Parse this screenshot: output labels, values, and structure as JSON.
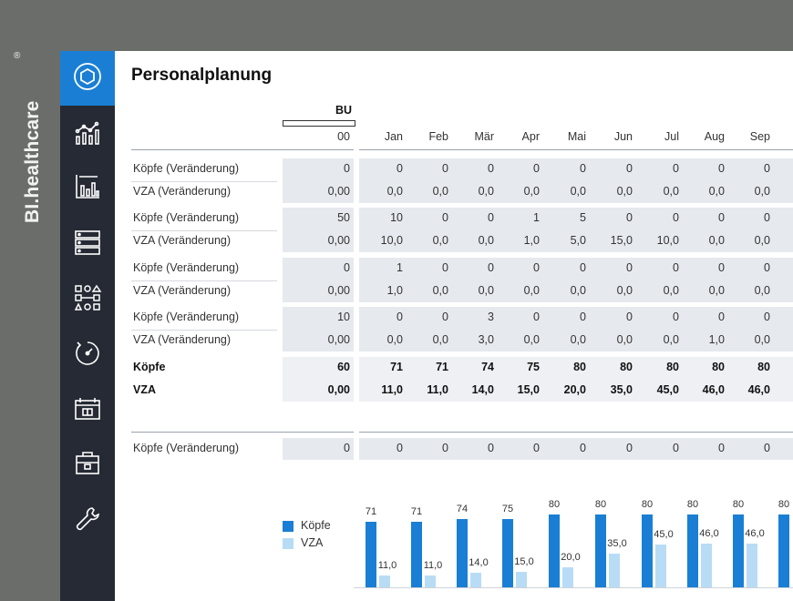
{
  "brand": {
    "name": "BI.healthcare",
    "mark": "®"
  },
  "sidebar": {
    "items": [
      {
        "icon": "hexagon-icon",
        "active": true
      },
      {
        "icon": "analytics-icon",
        "active": false
      },
      {
        "icon": "bar-chart-icon",
        "active": false
      },
      {
        "icon": "server-icon",
        "active": false
      },
      {
        "icon": "diagram-icon",
        "active": false
      },
      {
        "icon": "dial-icon",
        "active": false
      },
      {
        "icon": "calendar-icon",
        "active": false
      },
      {
        "icon": "briefcase-icon",
        "active": false
      },
      {
        "icon": "wrench-icon",
        "active": false
      }
    ]
  },
  "page": {
    "title": "Personalplanung"
  },
  "table": {
    "bu_header": "BU",
    "bu_value": "",
    "columns": [
      "00",
      "Jan",
      "Feb",
      "Mär",
      "Apr",
      "Mai",
      "Jun",
      "Jul",
      "Aug",
      "Sep"
    ],
    "groups": [
      {
        "rows": [
          {
            "label": "Köpfe (Veränderung)",
            "values": [
              "0",
              "0",
              "0",
              "0",
              "0",
              "0",
              "0",
              "0",
              "0",
              "0"
            ]
          },
          {
            "label": "VZA (Veränderung)",
            "values": [
              "0,00",
              "0,0",
              "0,0",
              "0,0",
              "0,0",
              "0,0",
              "0,0",
              "0,0",
              "0,0",
              "0,0"
            ]
          }
        ]
      },
      {
        "rows": [
          {
            "label": "Köpfe (Veränderung)",
            "values": [
              "50",
              "10",
              "0",
              "0",
              "1",
              "5",
              "0",
              "0",
              "0",
              "0"
            ]
          },
          {
            "label": "VZA (Veränderung)",
            "values": [
              "0,00",
              "10,0",
              "0,0",
              "0,0",
              "1,0",
              "5,0",
              "15,0",
              "10,0",
              "0,0",
              "0,0"
            ]
          }
        ]
      },
      {
        "rows": [
          {
            "label": "Köpfe (Veränderung)",
            "values": [
              "0",
              "1",
              "0",
              "0",
              "0",
              "0",
              "0",
              "0",
              "0",
              "0"
            ]
          },
          {
            "label": "VZA (Veränderung)",
            "values": [
              "0,00",
              "1,0",
              "0,0",
              "0,0",
              "0,0",
              "0,0",
              "0,0",
              "0,0",
              "0,0",
              "0,0"
            ]
          }
        ]
      },
      {
        "rows": [
          {
            "label": "Köpfe (Veränderung)",
            "values": [
              "10",
              "0",
              "0",
              "3",
              "0",
              "0",
              "0",
              "0",
              "0",
              "0"
            ]
          },
          {
            "label": "VZA (Veränderung)",
            "values": [
              "0,00",
              "0,0",
              "0,0",
              "3,0",
              "0,0",
              "0,0",
              "0,0",
              "0,0",
              "1,0",
              "0,0"
            ]
          }
        ]
      }
    ],
    "totals": [
      {
        "label": "Köpfe",
        "values": [
          "60",
          "71",
          "71",
          "74",
          "75",
          "80",
          "80",
          "80",
          "80",
          "80"
        ]
      },
      {
        "label": "VZA",
        "values": [
          "0,00",
          "11,0",
          "11,0",
          "14,0",
          "15,0",
          "20,0",
          "35,0",
          "45,0",
          "46,0",
          "46,0"
        ]
      }
    ],
    "extra_row": {
      "label": "Köpfe (Veränderung)",
      "values": [
        "0",
        "0",
        "0",
        "0",
        "0",
        "0",
        "0",
        "0",
        "0",
        "0"
      ]
    }
  },
  "chart_data": {
    "type": "bar",
    "series": [
      {
        "name": "Köpfe",
        "color": "#1a7fd4",
        "values": [
          71,
          71,
          74,
          75,
          80,
          80,
          80,
          80,
          80,
          80
        ]
      },
      {
        "name": "VZA",
        "color": "#b8dcf5",
        "values": [
          11.0,
          11.0,
          14.0,
          15.0,
          20.0,
          35.0,
          45.0,
          46.0,
          46.0,
          null
        ]
      }
    ],
    "value_labels": {
      "Köpfe": [
        "71",
        "71",
        "74",
        "75",
        "80",
        "80",
        "80",
        "80",
        "80",
        "80"
      ],
      "VZA": [
        "11,0",
        "11,0",
        "14,0",
        "15,0",
        "20,0",
        "35,0",
        "45,0",
        "46,0",
        "46,0",
        ""
      ]
    },
    "legend": "left"
  }
}
